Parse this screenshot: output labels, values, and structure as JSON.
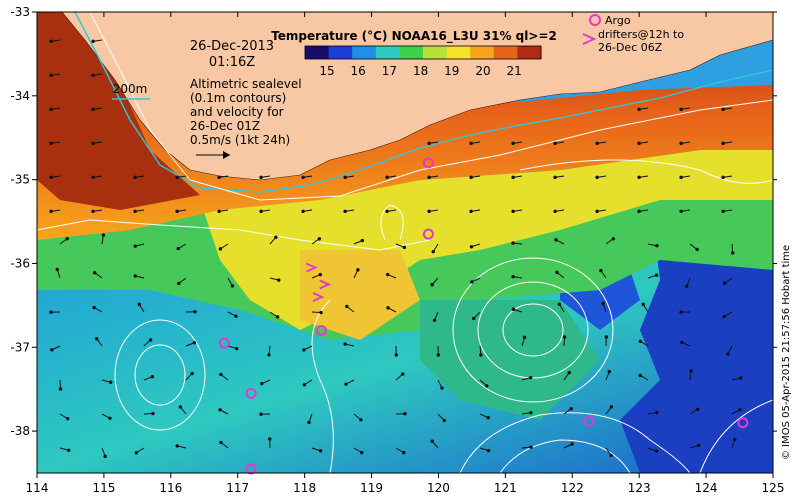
{
  "map": {
    "lon_min": 114,
    "lon_max": 125,
    "lat_min": -38.5,
    "lat_max": -33,
    "x_ticks": [
      "114",
      "115",
      "116",
      "117",
      "118",
      "119",
      "120",
      "121",
      "122",
      "123",
      "124",
      "125"
    ],
    "y_ticks": [
      "-33",
      "-34",
      "-35",
      "-36",
      "-37",
      "-38"
    ]
  },
  "colorbar": {
    "title": "Temperature (°C) NOAA16_L3U 31% ql>=2",
    "labels": [
      "15",
      "16",
      "17",
      "18",
      "19",
      "20",
      "21"
    ],
    "colors": [
      "#1a0a6e",
      "#1b3fd6",
      "#1f8fe8",
      "#2ec9c0",
      "#3fd14a",
      "#b4e23a",
      "#f2e32a",
      "#f7a51d",
      "#e8631a",
      "#b32a12"
    ]
  },
  "annotations": {
    "date": "26-Dec-2013",
    "time": "01:16Z",
    "contour_label": "200m",
    "altimetric_lines": [
      "Altimetric sealevel",
      "(0.1m contours)",
      "and velocity for",
      "26-Dec 01Z",
      "0.5m/s (1kt 24h)"
    ]
  },
  "legend": {
    "argo_label": "Argo",
    "drifter_lines": [
      "drifters@12h to",
      "26-Dec 06Z"
    ]
  },
  "credit": "© IMOS 05-Apr-2015 21:57:56 Hobart time",
  "argo_floats": [
    {
      "lon": 119.85,
      "lat": -34.8
    },
    {
      "lon": 119.85,
      "lat": -35.65
    },
    {
      "lon": 118.25,
      "lat": -36.8
    },
    {
      "lon": 116.8,
      "lat": -36.95
    },
    {
      "lon": 117.2,
      "lat": -37.55
    },
    {
      "lon": 117.2,
      "lat": -38.45
    },
    {
      "lon": 122.25,
      "lat": -37.88
    },
    {
      "lon": 124.55,
      "lat": -37.9
    }
  ],
  "drifters": [
    {
      "lon": 118.1,
      "lat": -36.05
    },
    {
      "lon": 118.3,
      "lat": -36.25
    },
    {
      "lon": 118.2,
      "lat": -36.4
    }
  ],
  "colors": {
    "land": "#f7c8a3",
    "argo": "#e13ad0",
    "drifter": "#e13ad0",
    "contour": "#ffffff",
    "isobath": "#2ec8d8"
  }
}
